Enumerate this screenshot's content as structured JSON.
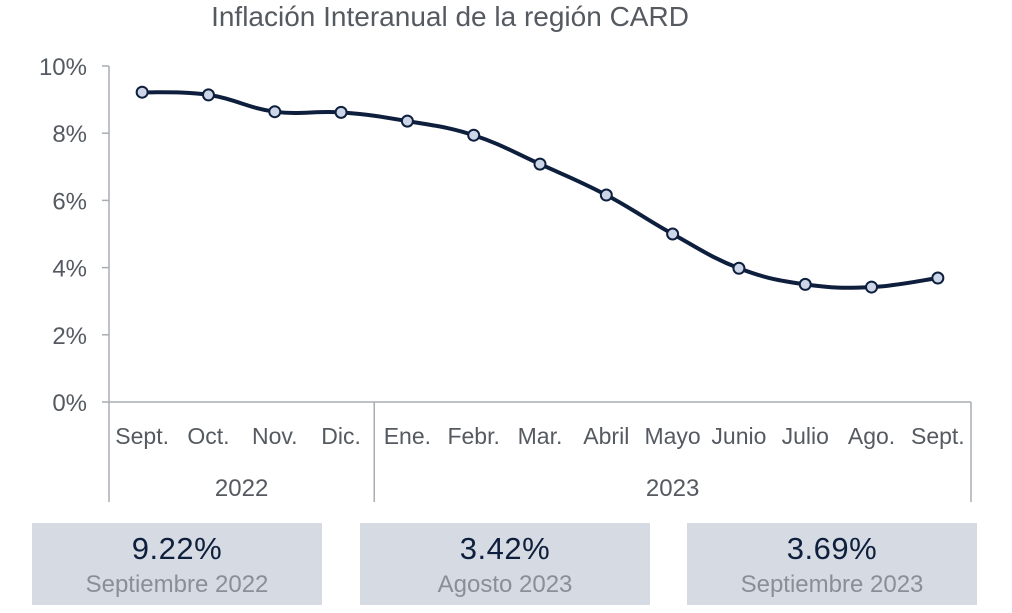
{
  "chart_data": {
    "type": "line",
    "title": "Inflación Interanual de la región CARD",
    "categories": [
      "Sept.",
      "Oct.",
      "Nov.",
      "Dic.",
      "Ene.",
      "Febr.",
      "Mar.",
      "Abril",
      "Mayo",
      "Junio",
      "Julio",
      "Ago.",
      "Sept."
    ],
    "year_groups": [
      {
        "label": "2022",
        "count": 4
      },
      {
        "label": "2023",
        "count": 9
      }
    ],
    "series": [
      {
        "values": [
          9.22,
          9.14,
          8.64,
          8.62,
          8.36,
          7.94,
          7.08,
          6.16,
          5.0,
          3.98,
          3.5,
          3.42,
          3.69
        ]
      }
    ],
    "ylim": [
      0,
      10
    ],
    "yticks": [
      "0%",
      "2%",
      "4%",
      "6%",
      "8%",
      "10%"
    ],
    "xlabel": "",
    "ylabel": "",
    "grid": false,
    "colors": {
      "line": "#0e1f3d",
      "marker_fill": "#cdd6e8"
    }
  },
  "summary_cards": [
    {
      "value": "9.22%",
      "label": "Septiembre 2022"
    },
    {
      "value": "3.42%",
      "label": "Agosto 2023"
    },
    {
      "value": "3.69%",
      "label": "Septiembre 2023"
    }
  ]
}
